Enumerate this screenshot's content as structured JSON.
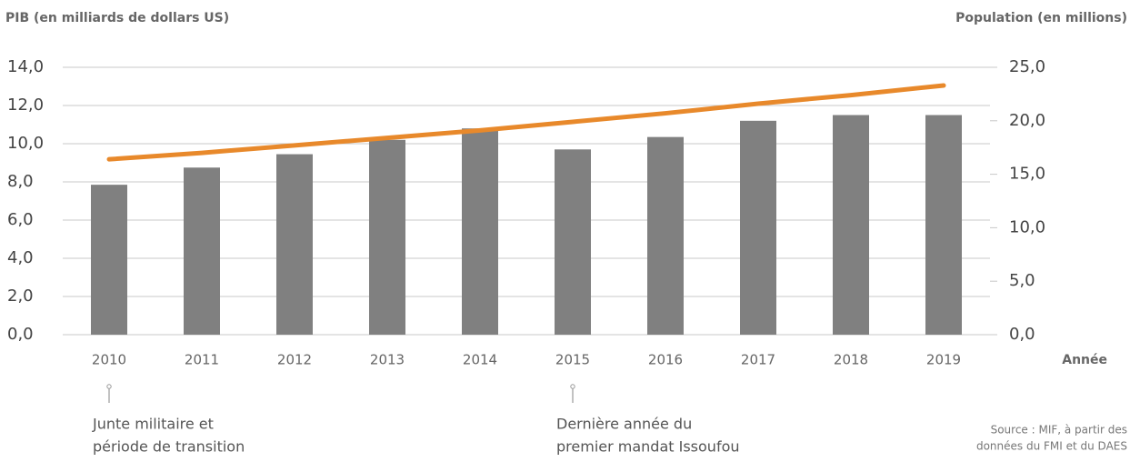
{
  "chart_data": {
    "type": "bar_line",
    "y_label": "PIB (en milliards de dollars US)",
    "y2_label": "Population (en millions)",
    "x_label": "Année",
    "categories": [
      "2010",
      "2011",
      "2012",
      "2013",
      "2014",
      "2015",
      "2016",
      "2017",
      "2018",
      "2019"
    ],
    "series": [
      {
        "type": "bar",
        "color": "#808080",
        "values": [
          7.85,
          8.75,
          9.45,
          10.2,
          10.8,
          9.7,
          10.35,
          11.2,
          11.5,
          11.5
        ]
      },
      {
        "type": "line",
        "axis": "y2",
        "color": "#e8892b",
        "values": [
          16.4,
          17.0,
          17.7,
          18.4,
          19.1,
          19.9,
          20.7,
          21.6,
          22.4,
          23.3
        ]
      }
    ],
    "ylim": [
      0,
      14
    ],
    "yticks": [
      {
        "value": 0,
        "label": "0,0"
      },
      {
        "value": 2,
        "label": "2,0"
      },
      {
        "value": 4,
        "label": "4,0"
      },
      {
        "value": 6,
        "label": "6,0"
      },
      {
        "value": 8,
        "label": "8,0"
      },
      {
        "value": 10,
        "label": "10,0"
      },
      {
        "value": 12,
        "label": "12,0"
      },
      {
        "value": 14,
        "label": "14,0"
      }
    ],
    "y2lim": [
      0,
      25
    ],
    "y2ticks": [
      {
        "value": 0,
        "label": "0,0"
      },
      {
        "value": 5,
        "label": "5,0"
      },
      {
        "value": 10,
        "label": "10,0"
      },
      {
        "value": 15,
        "label": "15,0"
      },
      {
        "value": 20,
        "label": "20,0"
      },
      {
        "value": 25,
        "label": "25,0"
      }
    ],
    "grid": true,
    "annotations": [
      {
        "category": "2010",
        "lines": [
          "Junte militaire et",
          "période de transition"
        ]
      },
      {
        "category": "2015",
        "lines": [
          "Dernière année du",
          "premier mandat Issoufou"
        ]
      }
    ],
    "source": [
      "Source : MIF, à partir des",
      "données du FMI et du DAES"
    ]
  }
}
